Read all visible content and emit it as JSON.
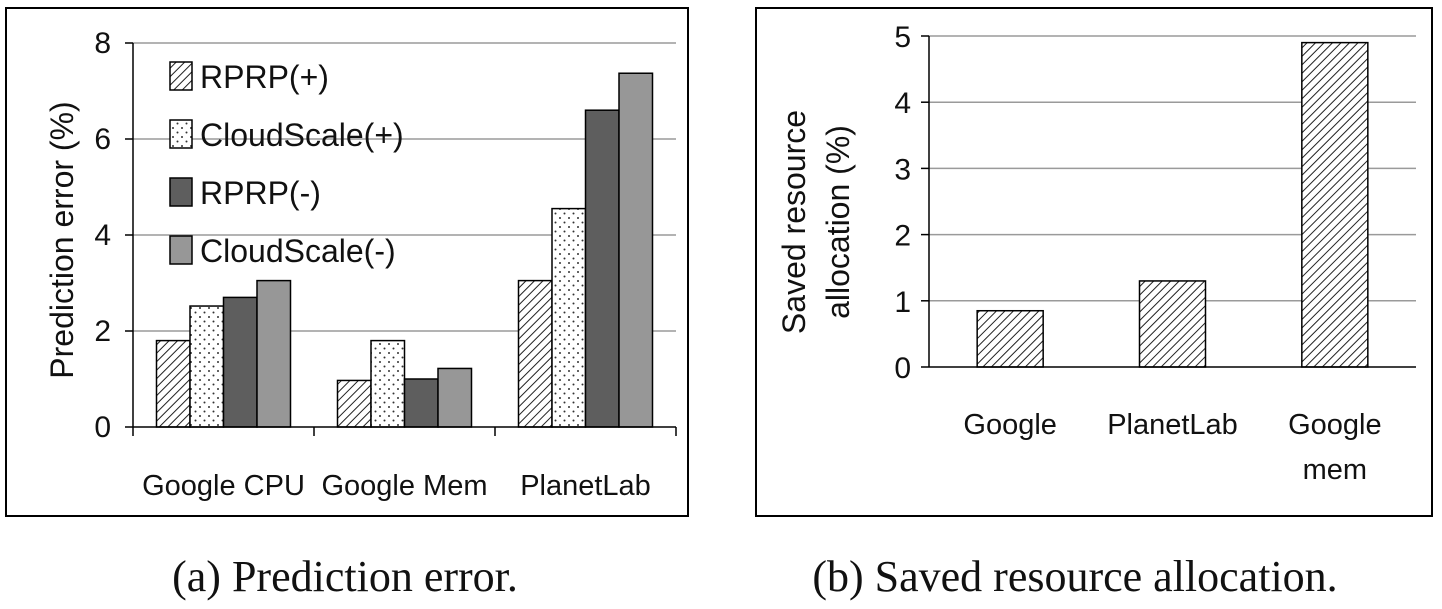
{
  "chart_data": [
    {
      "type": "bar",
      "ylabel": "Prediction error (%)",
      "ylim": [
        0,
        8
      ],
      "yticks": [
        0,
        2,
        4,
        6,
        8
      ],
      "categories": [
        "Google CPU",
        "Google Mem",
        "PlanetLab"
      ],
      "legend_position": "top-left",
      "grid": true,
      "series": [
        {
          "name": "RPRP(+)",
          "pattern": "diagonal-hatch",
          "color": "#ffffff",
          "values": [
            1.8,
            0.97,
            3.05
          ]
        },
        {
          "name": "CloudScale(+)",
          "pattern": "dots",
          "color": "#ffffff",
          "values": [
            2.52,
            1.8,
            4.55
          ]
        },
        {
          "name": "RPRP(-)",
          "pattern": "solid",
          "color": "#5e5e5e",
          "values": [
            2.7,
            1.0,
            6.6
          ]
        },
        {
          "name": "CloudScale(-)",
          "pattern": "solid",
          "color": "#979797",
          "values": [
            3.05,
            1.22,
            7.37
          ]
        }
      ],
      "caption": "(a) Prediction error."
    },
    {
      "type": "bar",
      "ylabel_lines": [
        "Saved resource",
        "allocation (%)"
      ],
      "ylim": [
        0,
        5
      ],
      "yticks": [
        0,
        1,
        2,
        3,
        4,
        5
      ],
      "categories": [
        [
          "Google"
        ],
        [
          "PlanetLab"
        ],
        [
          "Google",
          "mem"
        ]
      ],
      "grid": true,
      "series": [
        {
          "pattern": "diagonal-hatch",
          "color": "#ffffff",
          "values": [
            0.85,
            1.3,
            4.9
          ]
        }
      ],
      "caption": "(b) Saved resource allocation."
    }
  ]
}
